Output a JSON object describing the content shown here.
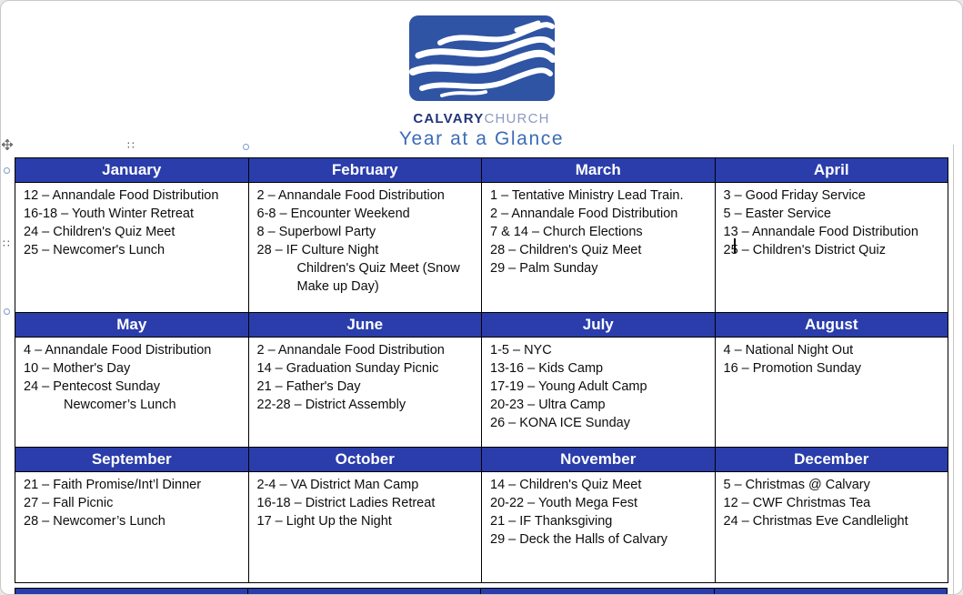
{
  "header": {
    "brand_bold": "CALVARY",
    "brand_light": "CHURCH",
    "subtitle": "Year at a Glance",
    "logo_icon": "wave-lines-logo"
  },
  "colors": {
    "header_blue": "#2a3dab",
    "logo_blue": "#2f54a4",
    "brand_dark_blue": "#223379",
    "brand_light_blue": "#8b99c2",
    "subtitle_blue": "#3b6cb5",
    "table_border": "#000000"
  },
  "months": [
    {
      "name": "January",
      "events": [
        {
          "text": "12 – Annandale Food Distribution"
        },
        {
          "text": "16-18 – Youth Winter Retreat"
        },
        {
          "text": "24 – Children's Quiz Meet"
        },
        {
          "text": "25 – Newcomer's Lunch"
        }
      ]
    },
    {
      "name": "February",
      "events": [
        {
          "text": "2 – Annandale Food Distribution"
        },
        {
          "text": "6-8 – Encounter Weekend"
        },
        {
          "text": "8 – Superbowl Party"
        },
        {
          "text": "28 – IF Culture Night"
        },
        {
          "text": "Children's Quiz Meet (Snow",
          "indent": true
        },
        {
          "text": "Make up Day)",
          "indent": true
        }
      ]
    },
    {
      "name": "March",
      "events": [
        {
          "text": "1 – Tentative Ministry Lead Train."
        },
        {
          "text": "2 – Annandale Food Distribution"
        },
        {
          "text": "7 & 14 – Church Elections"
        },
        {
          "text": "28 – Children's Quiz Meet"
        },
        {
          "text": "29 – Palm Sunday"
        }
      ]
    },
    {
      "name": "April",
      "events": [
        {
          "text": "3 – Good Friday Service"
        },
        {
          "text": "5 – Easter Service"
        },
        {
          "text": "13 – Annandale Food Distribution"
        },
        {
          "text": "25 – Children's District Quiz"
        }
      ]
    },
    {
      "name": "May",
      "events": [
        {
          "text": "4 – Annandale Food Distribution"
        },
        {
          "text": "10 – Mother's Day"
        },
        {
          "text": "24 – Pentecost Sunday"
        },
        {
          "text": "Newcomer’s Lunch",
          "indent": true
        }
      ]
    },
    {
      "name": "June",
      "events": [
        {
          "text": "2 – Annandale Food Distribution"
        },
        {
          "text": "14 – Graduation Sunday Picnic"
        },
        {
          "text": "21 – Father's Day"
        },
        {
          "text": "22-28 – District Assembly"
        }
      ]
    },
    {
      "name": "July",
      "events": [
        {
          "text": "1-5 – NYC"
        },
        {
          "text": "13-16 – Kids Camp"
        },
        {
          "text": "17-19 – Young Adult Camp"
        },
        {
          "text": "20-23 – Ultra Camp"
        },
        {
          "text": "26 – KONA ICE Sunday"
        }
      ]
    },
    {
      "name": "August",
      "events": [
        {
          "text": "4 – National Night Out"
        },
        {
          "text": "16 – Promotion Sunday"
        }
      ]
    },
    {
      "name": "September",
      "events": [
        {
          "text": "21 – Faith Promise/Int’l Dinner"
        },
        {
          "text": "27 – Fall Picnic"
        },
        {
          "text": "28 – Newcomer’s Lunch"
        }
      ]
    },
    {
      "name": "October",
      "events": [
        {
          "text": "2-4 – VA District Man Camp"
        },
        {
          "text": "16-18 – District Ladies Retreat"
        },
        {
          "text": "17 – Light Up the Night"
        }
      ]
    },
    {
      "name": "November",
      "events": [
        {
          "text": "14 – Children's Quiz Meet"
        },
        {
          "text": "20-22 – Youth Mega Fest"
        },
        {
          "text": "21 – IF Thanksgiving"
        },
        {
          "text": "29 – Deck the Halls of Calvary"
        }
      ]
    },
    {
      "name": "December",
      "events": [
        {
          "text": "5 – Christmas @ Calvary"
        },
        {
          "text": "12 – CWF Christmas Tea"
        },
        {
          "text": "24 – Christmas Eve Candlelight"
        }
      ]
    }
  ],
  "artifacts": {
    "table_move_handle": "∷",
    "left_drag_handle": "∷",
    "caret_location_month": "April"
  }
}
